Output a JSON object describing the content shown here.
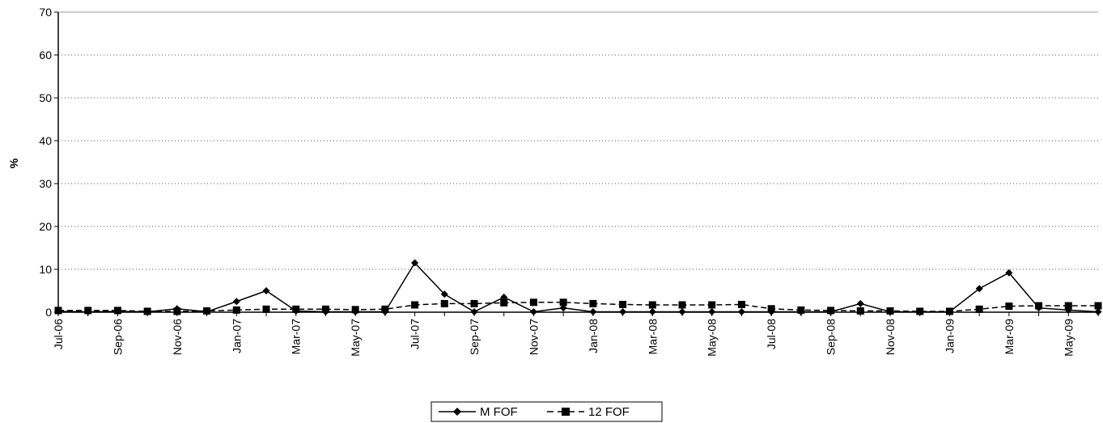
{
  "chart_data": {
    "type": "line",
    "title": "",
    "xlabel": "",
    "ylabel": "%",
    "ylim": [
      0,
      70
    ],
    "yticks": [
      "0",
      "10",
      "20",
      "30",
      "40",
      "50",
      "60",
      "70"
    ],
    "grid": "horizontal-dotted",
    "legend_position": "bottom-center",
    "categories": [
      "Jul-06",
      "Aug-06",
      "Sep-06",
      "Oct-06",
      "Nov-06",
      "Dec-06",
      "Jan-07",
      "Feb-07",
      "Mar-07",
      "Apr-07",
      "May-07",
      "Jun-07",
      "Jul-07",
      "Aug-07",
      "Sep-07",
      "Oct-07",
      "Nov-07",
      "Dec-07",
      "Jan-08",
      "Feb-08",
      "Mar-08",
      "Apr-08",
      "May-08",
      "Jun-08",
      "Jul-08",
      "Aug-08",
      "Sep-08",
      "Oct-08",
      "Nov-08",
      "Dec-08",
      "Jan-09",
      "Feb-09",
      "Mar-09",
      "Apr-09",
      "May-09",
      "Jun-09"
    ],
    "xtick_labels": [
      "Jul-06",
      "Sep-06",
      "Nov-06",
      "Jan-07",
      "Mar-07",
      "May-07",
      "Jul-07",
      "Sep-07",
      "Nov-07",
      "Jan-08",
      "Mar-08",
      "May-08",
      "Jul-08",
      "Sep-08",
      "Nov-08",
      "Jan-09",
      "Mar-09",
      "May-09"
    ],
    "series": [
      {
        "name": "M FOF",
        "marker": "diamond",
        "line_style": "solid",
        "color": "#000000",
        "values": [
          0.2,
          0.1,
          0.2,
          0.1,
          0.8,
          0.1,
          2.5,
          5.0,
          0.3,
          0.1,
          0.1,
          0.1,
          11.5,
          4.2,
          0.1,
          3.5,
          0.1,
          1.0,
          0.1,
          0.1,
          0.1,
          0.1,
          0.1,
          0.1,
          0.1,
          0.1,
          0.1,
          2.0,
          0.1,
          0.1,
          0.1,
          5.5,
          9.2,
          1.0,
          0.5,
          0.1
        ]
      },
      {
        "name": "12 FOF",
        "marker": "square",
        "line_style": "dashed",
        "color": "#000000",
        "values": [
          0.4,
          0.4,
          0.4,
          0.2,
          0.2,
          0.3,
          0.5,
          0.7,
          0.7,
          0.7,
          0.6,
          0.7,
          1.7,
          2.0,
          2.0,
          2.2,
          2.3,
          2.3,
          2.0,
          1.8,
          1.7,
          1.7,
          1.7,
          1.8,
          0.8,
          0.5,
          0.4,
          0.3,
          0.3,
          0.2,
          0.2,
          0.7,
          1.4,
          1.5,
          1.5,
          1.5
        ]
      }
    ]
  }
}
